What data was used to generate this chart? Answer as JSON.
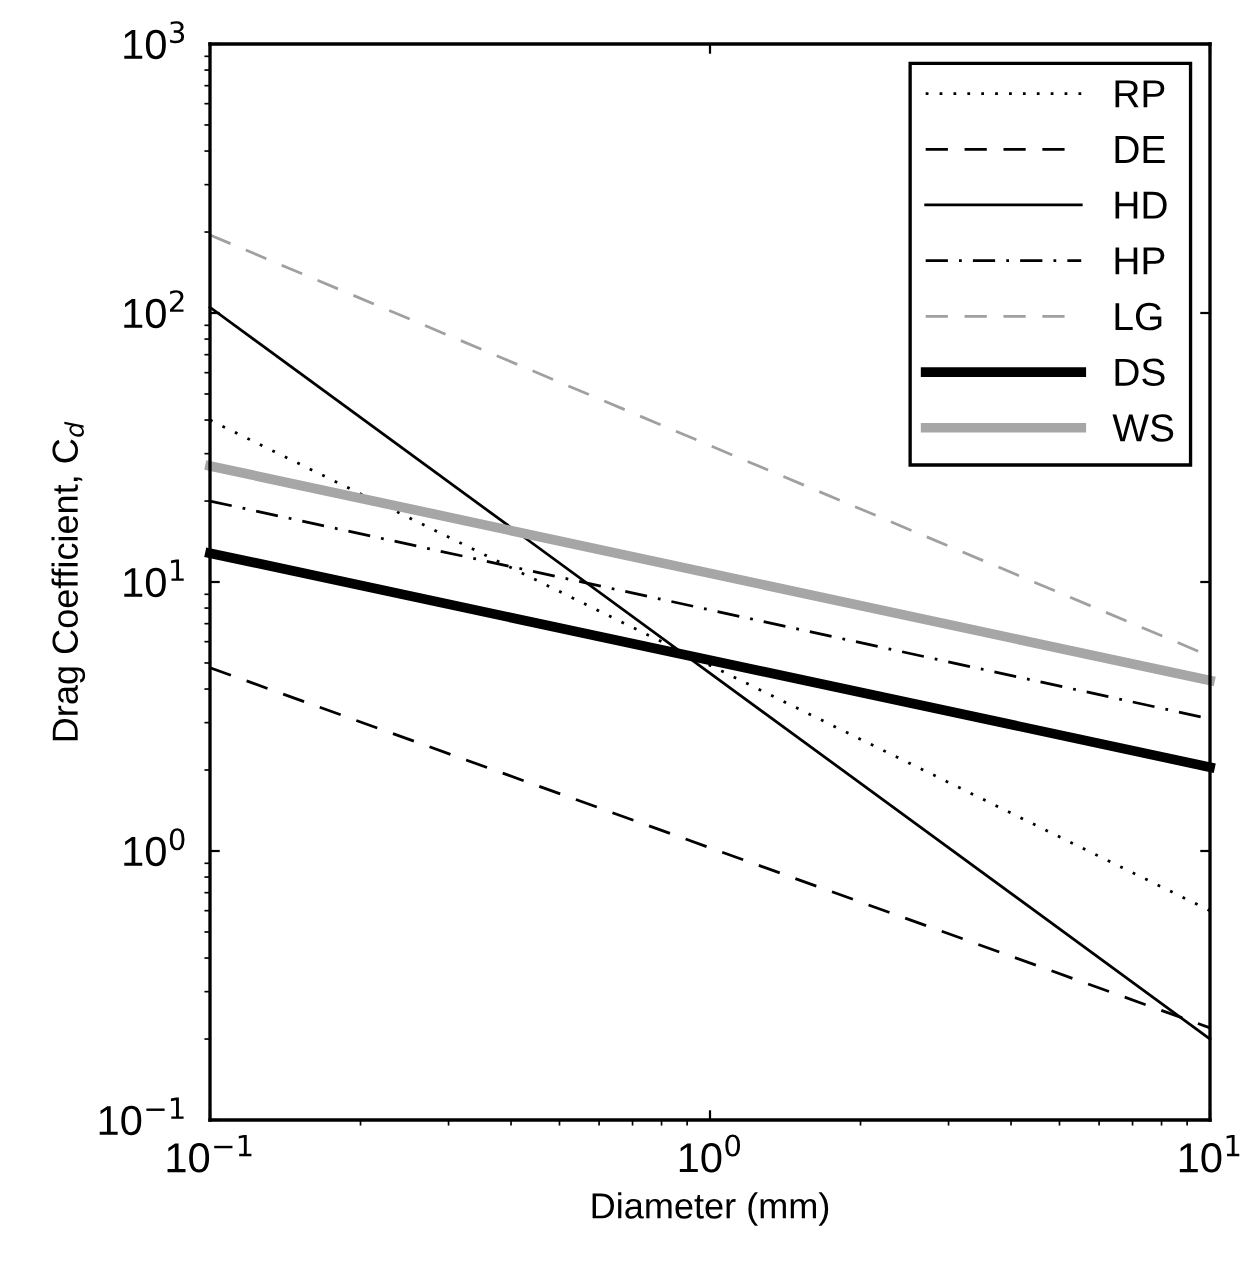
{
  "chart_data": {
    "type": "line",
    "xlabel": "Diameter (mm)",
    "ylabel": "Drag Coefficient, C$_{d}$",
    "log": "xy",
    "xlim": [
      0.1,
      10
    ],
    "ylim": [
      0.1,
      1000
    ],
    "xticks": [
      {
        "value": 0.1,
        "label": "10$^{−1}$"
      },
      {
        "value": 1,
        "label": "10$^{0}$"
      },
      {
        "value": 10,
        "label": "10$^{1}$"
      }
    ],
    "yticks": [
      {
        "value": 0.1,
        "label": "10$^{−1}$"
      },
      {
        "value": 1,
        "label": "10$^{0}$"
      },
      {
        "value": 10,
        "label": "10$^{1}$"
      },
      {
        "value": 100,
        "label": "10$^{2}$"
      },
      {
        "value": 1000,
        "label": "10$^{3}$"
      }
    ],
    "grid": false,
    "legend": "top right",
    "marker": "none",
    "x": [
      0.1,
      10
    ],
    "series": [
      {
        "name": "RP",
        "color": "#000000",
        "line_style": "dotted",
        "values": [
          40,
          0.6
        ]
      },
      {
        "name": "DE",
        "color": "#000000",
        "line_style": "dashed",
        "values": [
          4.8,
          0.22
        ]
      },
      {
        "name": "HD",
        "color": "#000000",
        "line_style": "solid",
        "values": [
          105,
          0.2
        ]
      },
      {
        "name": "HP",
        "color": "#000000",
        "line_style": "dashdot",
        "values": [
          20,
          3.1
        ]
      },
      {
        "name": "LG",
        "color": "#a0a0a0",
        "line_style": "dashed",
        "values": [
          195,
          5.3
        ]
      },
      {
        "name": "DS",
        "color": "#000000",
        "line_style": "solid",
        "values": [
          12.8,
          2.05
        ]
      },
      {
        "name": "WS",
        "color": "#a6a6a6",
        "line_style": "solid",
        "values": [
          27,
          4.3
        ]
      }
    ]
  }
}
